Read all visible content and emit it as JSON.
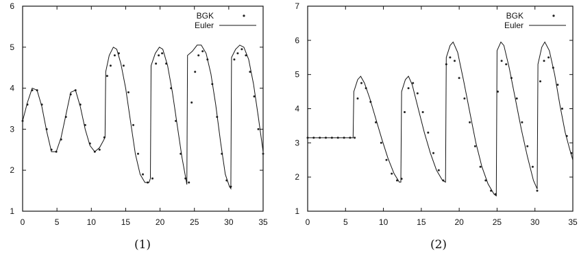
{
  "chart_data": [
    {
      "type": "line",
      "caption": "(1)",
      "xlim": [
        0,
        35
      ],
      "ylim": [
        1,
        6
      ],
      "xticks": [
        0,
        5,
        10,
        15,
        20,
        25,
        30,
        35
      ],
      "yticks": [
        1,
        2,
        3,
        4,
        5,
        6
      ],
      "legend_position": "top-right",
      "series": [
        {
          "name": "BGK",
          "style": "points",
          "x": [
            0,
            0.7,
            1.4,
            2.1,
            2.8,
            3.5,
            4.2,
            4.9,
            5.6,
            6.3,
            7.0,
            7.7,
            8.4,
            9.1,
            9.8,
            10.5,
            11.2,
            11.9,
            12.3,
            12.8,
            13.4,
            14.0,
            14.7,
            15.4,
            16.1,
            16.8,
            17.5,
            18.2,
            18.9,
            19.4,
            19.8,
            20.3,
            20.9,
            21.6,
            22.3,
            23.0,
            23.7,
            24.2,
            24.6,
            25.1,
            25.6,
            26.2,
            26.9,
            27.6,
            28.3,
            29.0,
            29.7,
            30.3,
            30.8,
            31.3,
            31.9,
            32.5,
            33.1,
            33.7,
            34.3,
            35.0
          ],
          "y": [
            3.2,
            3.6,
            3.95,
            3.95,
            3.6,
            3.0,
            2.5,
            2.45,
            2.75,
            3.3,
            3.85,
            3.95,
            3.6,
            3.1,
            2.65,
            2.45,
            2.5,
            2.8,
            4.3,
            4.55,
            4.8,
            4.85,
            4.55,
            3.9,
            3.1,
            2.4,
            1.9,
            1.7,
            1.8,
            4.6,
            4.8,
            4.85,
            4.6,
            4.0,
            3.2,
            2.4,
            1.8,
            1.7,
            3.65,
            4.4,
            4.8,
            4.9,
            4.7,
            4.1,
            3.3,
            2.4,
            1.75,
            1.6,
            4.7,
            4.85,
            4.95,
            4.8,
            4.4,
            3.8,
            3.0,
            2.4
          ]
        },
        {
          "name": "Euler",
          "style": "line",
          "x": [
            0,
            0.7,
            1.4,
            2.1,
            2.8,
            3.5,
            4.2,
            4.9,
            5.6,
            6.3,
            7.0,
            7.7,
            8.4,
            9.1,
            9.8,
            10.5,
            11.2,
            11.7,
            12.0,
            12.1,
            12.6,
            13.2,
            13.7,
            14.3,
            15.0,
            15.7,
            16.4,
            17.1,
            17.8,
            18.4,
            18.6,
            18.7,
            19.3,
            19.9,
            20.4,
            21.1,
            21.8,
            22.5,
            23.2,
            23.8,
            23.9,
            24.0,
            24.7,
            25.4,
            26.0,
            26.7,
            27.4,
            28.1,
            28.8,
            29.5,
            30.1,
            30.3,
            30.4,
            31.0,
            31.6,
            32.2,
            32.9,
            33.6,
            34.3,
            35.0
          ],
          "y": [
            3.2,
            3.65,
            4.0,
            3.95,
            3.55,
            2.95,
            2.45,
            2.45,
            2.8,
            3.35,
            3.9,
            3.95,
            3.55,
            3.0,
            2.6,
            2.45,
            2.55,
            2.7,
            2.8,
            4.4,
            4.8,
            5.0,
            4.95,
            4.6,
            4.0,
            3.2,
            2.4,
            1.9,
            1.7,
            1.7,
            1.8,
            4.55,
            4.85,
            5.0,
            4.95,
            4.55,
            3.9,
            3.1,
            2.3,
            1.75,
            1.65,
            4.8,
            4.9,
            5.05,
            5.05,
            4.85,
            4.35,
            3.6,
            2.7,
            1.9,
            1.6,
            1.55,
            4.75,
            4.95,
            5.05,
            5.0,
            4.7,
            4.1,
            3.3,
            2.45
          ]
        }
      ]
    },
    {
      "type": "line",
      "caption": "(2)",
      "xlim": [
        0,
        35
      ],
      "ylim": [
        1,
        7
      ],
      "xticks": [
        0,
        5,
        10,
        15,
        20,
        25,
        30,
        35
      ],
      "yticks": [
        1,
        2,
        3,
        4,
        5,
        6,
        7
      ],
      "legend_position": "top-right",
      "series": [
        {
          "name": "BGK",
          "style": "points",
          "x": [
            0,
            0.8,
            1.6,
            2.4,
            3.2,
            4.0,
            4.8,
            5.6,
            6.2,
            6.6,
            7.1,
            7.7,
            8.3,
            9.0,
            9.7,
            10.4,
            11.1,
            11.8,
            12.4,
            12.8,
            13.3,
            13.9,
            14.5,
            15.2,
            15.9,
            16.6,
            17.3,
            17.9,
            18.3,
            18.8,
            19.4,
            20.0,
            20.7,
            21.4,
            22.1,
            22.8,
            23.5,
            24.2,
            24.8,
            25.1,
            25.6,
            26.2,
            26.9,
            27.6,
            28.3,
            29.0,
            29.7,
            30.3,
            30.7,
            31.2,
            31.8,
            32.4,
            33.0,
            33.6,
            34.2,
            34.8
          ],
          "y": [
            3.15,
            3.15,
            3.15,
            3.15,
            3.15,
            3.15,
            3.15,
            3.15,
            3.15,
            4.3,
            4.75,
            4.6,
            4.2,
            3.6,
            3.0,
            2.5,
            2.1,
            1.9,
            1.95,
            3.9,
            4.6,
            4.75,
            4.45,
            3.9,
            3.3,
            2.7,
            2.2,
            1.9,
            5.3,
            5.5,
            5.4,
            4.9,
            4.3,
            3.6,
            2.9,
            2.3,
            1.9,
            1.6,
            1.5,
            4.5,
            5.4,
            5.3,
            4.9,
            4.3,
            3.6,
            2.9,
            2.3,
            1.6,
            4.8,
            5.4,
            5.5,
            5.2,
            4.7,
            4.0,
            3.2,
            2.7
          ]
        },
        {
          "name": "Euler",
          "style": "line",
          "x": [
            0,
            2,
            4,
            6.0,
            6.1,
            6.6,
            7.0,
            7.5,
            8.2,
            9.0,
            9.8,
            10.6,
            11.4,
            12.1,
            12.3,
            12.4,
            12.9,
            13.3,
            13.8,
            14.6,
            15.4,
            16.2,
            17.0,
            17.8,
            18.2,
            18.3,
            18.8,
            19.2,
            19.8,
            20.6,
            21.4,
            22.2,
            23.0,
            23.8,
            24.6,
            24.9,
            25.0,
            25.5,
            25.9,
            26.6,
            27.4,
            28.2,
            29.0,
            29.8,
            30.3,
            30.4,
            30.9,
            31.3,
            31.9,
            32.6,
            33.3,
            34.0,
            34.6,
            35.0
          ],
          "y": [
            3.15,
            3.15,
            3.15,
            3.15,
            4.5,
            4.85,
            4.95,
            4.75,
            4.3,
            3.7,
            3.1,
            2.55,
            2.1,
            1.85,
            1.85,
            4.5,
            4.85,
            4.95,
            4.7,
            4.0,
            3.3,
            2.7,
            2.2,
            1.9,
            1.85,
            5.5,
            5.85,
            5.95,
            5.65,
            4.8,
            3.9,
            3.0,
            2.3,
            1.8,
            1.5,
            1.45,
            5.7,
            5.95,
            5.85,
            5.2,
            4.3,
            3.4,
            2.6,
            1.9,
            1.65,
            5.3,
            5.8,
            5.95,
            5.7,
            5.0,
            4.1,
            3.3,
            2.8,
            2.5
          ]
        }
      ]
    }
  ]
}
